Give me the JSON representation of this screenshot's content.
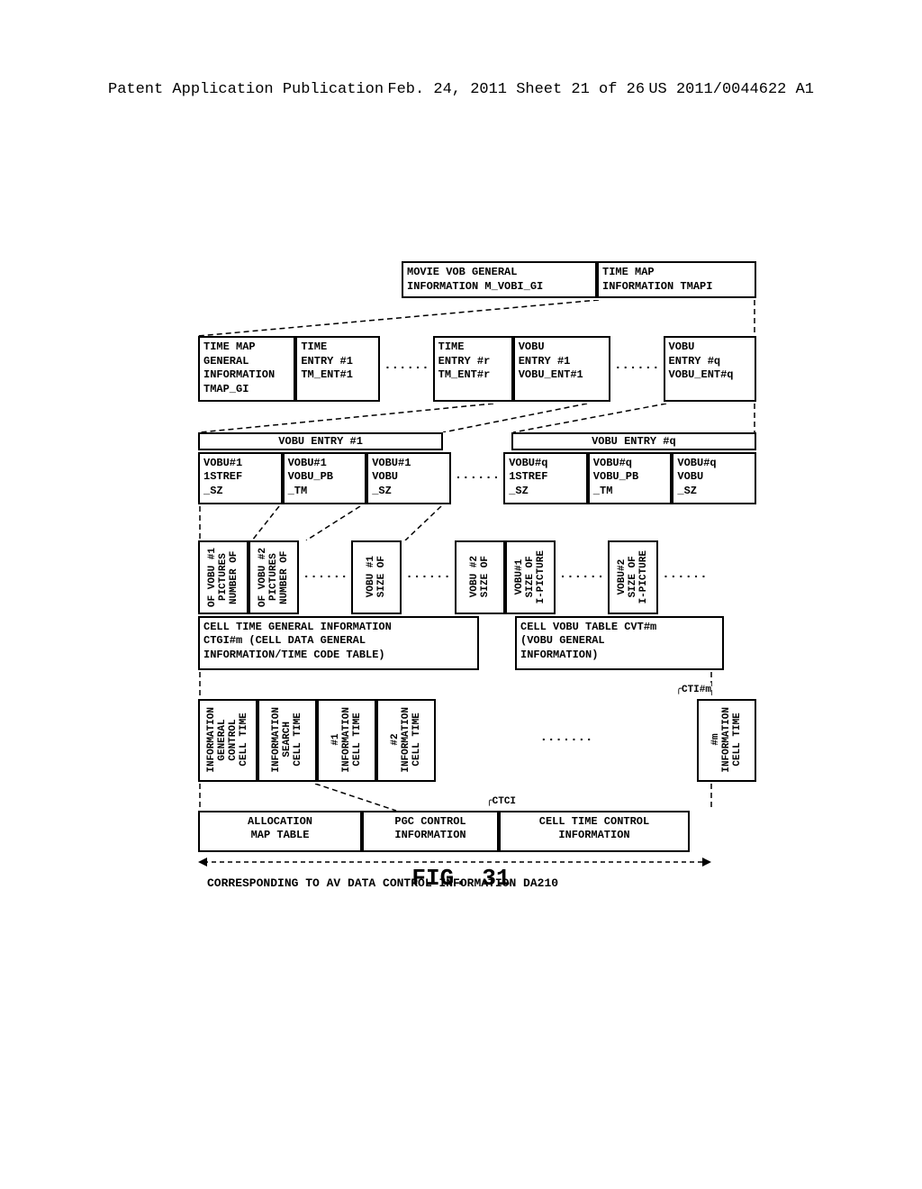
{
  "header": {
    "left": "Patent Application Publication",
    "center": "Feb. 24, 2011  Sheet 21 of 26",
    "right": "US 2011/0044622 A1"
  },
  "figureLabel": "FIG. 31",
  "row1": {
    "box1": "MOVIE VOB GENERAL\nINFORMATION M_VOBI_GI",
    "box2": "TIME MAP\nINFORMATION TMAPI"
  },
  "row2": {
    "box1": "TIME MAP\nGENERAL\nINFORMATION\nTMAP_GI",
    "box2": "TIME\nENTRY #1\nTM_ENT#1",
    "box3": "TIME\nENTRY #r\nTM_ENT#r",
    "box4": "VOBU\nENTRY #1\nVOBU_ENT#1",
    "box5": "VOBU\nENTRY #q\nVOBU_ENT#q"
  },
  "row3": {
    "headerLeft": "VOBU ENTRY #1",
    "headerRight": "VOBU ENTRY #q",
    "l1": "VOBU#1\n1STREF\n_SZ",
    "l2": "VOBU#1\nVOBU_PB\n_TM",
    "l3": "VOBU#1\nVOBU\n_SZ",
    "r1": "VOBU#q\n1STREF\n_SZ",
    "r2": "VOBU#q\nVOBU_PB\n_TM",
    "r3": "VOBU#q\nVOBU\n_SZ"
  },
  "row4": {
    "v1": "NUMBER OF\nPICTURES\nOF VOBU #1",
    "v2": "NUMBER OF\nPICTURES\nOF VOBU #2",
    "v3": "SIZE OF\nVOBU #1",
    "v4": "SIZE OF\nVOBU #2",
    "v5": "I-PICTURE\nSIZE OF\nVOBU#1",
    "v6": "I-PICTURE\nSIZE OF\nVOBU#2"
  },
  "row5": {
    "box1": "CELL TIME GENERAL INFORMATION\nCTGI#m (CELL DATA GENERAL\nINFORMATION/TIME CODE TABLE)",
    "box2": "CELL VOBU TABLE CVT#m\n(VOBU GENERAL\nINFORMATION)"
  },
  "row6": {
    "label": "CTI#m",
    "v1": "CELL TIME\nCONTROL\nGENERAL\nINFORMATION",
    "v2": "CELL TIME\nSEARCH\nINFORMATION",
    "v3": "CELL TIME\nINFORMATION\n#1",
    "v4": "CELL TIME\nINFORMATION\n#2",
    "v5": "CELL TIME\nINFORMATION\n#m"
  },
  "row7": {
    "label": "CTCI",
    "b1": "ALLOCATION\nMAP TABLE",
    "b2": "PGC CONTROL\nINFORMATION",
    "b3": "CELL TIME CONTROL\nINFORMATION"
  },
  "footer": "CORRESPONDING TO AV DATA CONTROL INFORMATION DA210",
  "colors": {
    "stroke": "#000000",
    "bg": "#ffffff"
  }
}
